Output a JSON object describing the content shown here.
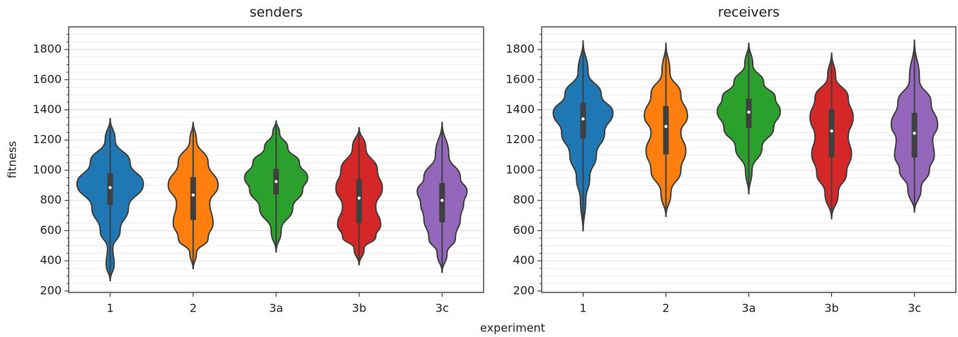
{
  "xlabel": "experiment",
  "chart_data": [
    {
      "type": "violin",
      "title": "senders",
      "ylabel": "fitness",
      "categories": [
        "1",
        "2",
        "3a",
        "3b",
        "3c"
      ],
      "ylim": [
        190,
        1950
      ],
      "yticks": [
        200,
        400,
        600,
        800,
        1000,
        1200,
        1400,
        1600,
        1800
      ],
      "yminor": [
        250,
        300,
        350,
        450,
        500,
        550,
        650,
        700,
        750,
        850,
        900,
        950,
        1050,
        1100,
        1150,
        1250,
        1300,
        1350,
        1450,
        1500,
        1550,
        1650,
        1700,
        1750,
        1850,
        1900
      ],
      "grid": true,
      "violins": [
        {
          "color": "#1f77b4",
          "q1": 770,
          "median": 885,
          "q3": 980,
          "profile_y": [
            265,
            380,
            480,
            600,
            750,
            910,
            1050,
            1200,
            1345
          ],
          "profile_w": [
            0,
            0.12,
            0.08,
            0.3,
            0.55,
            1,
            0.6,
            0.15,
            0
          ]
        },
        {
          "color": "#ff7f0e",
          "q1": 670,
          "median": 835,
          "q3": 955,
          "profile_y": [
            345,
            450,
            550,
            650,
            780,
            900,
            1050,
            1200,
            1320
          ],
          "profile_w": [
            0,
            0.1,
            0.45,
            0.6,
            0.5,
            0.75,
            0.45,
            0.1,
            0
          ]
        },
        {
          "color": "#2ca02c",
          "q1": 840,
          "median": 925,
          "q3": 1010,
          "profile_y": [
            455,
            600,
            750,
            870,
            950,
            1050,
            1150,
            1250,
            1330
          ],
          "profile_w": [
            0,
            0.15,
            0.5,
            0.8,
            0.95,
            0.7,
            0.35,
            0.1,
            0
          ]
        },
        {
          "color": "#d62728",
          "q1": 650,
          "median": 815,
          "q3": 940,
          "profile_y": [
            370,
            480,
            560,
            640,
            760,
            880,
            1000,
            1150,
            1285
          ],
          "profile_w": [
            0,
            0.15,
            0.5,
            0.65,
            0.5,
            0.7,
            0.55,
            0.2,
            0
          ]
        },
        {
          "color": "#9467bd",
          "q1": 655,
          "median": 800,
          "q3": 915,
          "profile_y": [
            320,
            450,
            550,
            680,
            780,
            860,
            950,
            1100,
            1320
          ],
          "profile_w": [
            0,
            0.15,
            0.4,
            0.55,
            0.65,
            0.75,
            0.55,
            0.2,
            0
          ]
        }
      ]
    },
    {
      "type": "violin",
      "title": "receivers",
      "categories": [
        "1",
        "2",
        "3a",
        "3b",
        "3c"
      ],
      "ylim": [
        190,
        1950
      ],
      "yticks": [
        200,
        400,
        600,
        800,
        1000,
        1200,
        1400,
        1600,
        1800
      ],
      "yminor": [
        250,
        300,
        350,
        450,
        500,
        550,
        650,
        700,
        750,
        850,
        900,
        950,
        1050,
        1100,
        1150,
        1250,
        1300,
        1350,
        1450,
        1500,
        1550,
        1650,
        1700,
        1750,
        1850,
        1900
      ],
      "grid": true,
      "violins": [
        {
          "color": "#1f77b4",
          "q1": 1210,
          "median": 1340,
          "q3": 1445,
          "profile_y": [
            595,
            800,
            950,
            1100,
            1250,
            1380,
            1500,
            1650,
            1860
          ],
          "profile_w": [
            0,
            0.08,
            0.2,
            0.4,
            0.65,
            0.9,
            0.55,
            0.15,
            0
          ]
        },
        {
          "color": "#ff7f0e",
          "q1": 1105,
          "median": 1290,
          "q3": 1425,
          "profile_y": [
            690,
            850,
            1000,
            1130,
            1250,
            1360,
            1500,
            1650,
            1845
          ],
          "profile_w": [
            0,
            0.15,
            0.45,
            0.6,
            0.45,
            0.65,
            0.45,
            0.12,
            0
          ]
        },
        {
          "color": "#2ca02c",
          "q1": 1280,
          "median": 1385,
          "q3": 1475,
          "profile_y": [
            840,
            1000,
            1150,
            1280,
            1390,
            1480,
            1580,
            1700,
            1845
          ],
          "profile_w": [
            0,
            0.1,
            0.4,
            0.75,
            0.95,
            0.8,
            0.45,
            0.12,
            0
          ]
        },
        {
          "color": "#d62728",
          "q1": 1085,
          "median": 1260,
          "q3": 1405,
          "profile_y": [
            675,
            850,
            980,
            1110,
            1220,
            1350,
            1480,
            1620,
            1780
          ],
          "profile_w": [
            0,
            0.2,
            0.45,
            0.6,
            0.5,
            0.65,
            0.5,
            0.12,
            0
          ]
        },
        {
          "color": "#9467bd",
          "q1": 1085,
          "median": 1245,
          "q3": 1380,
          "profile_y": [
            720,
            880,
            1000,
            1100,
            1200,
            1300,
            1450,
            1600,
            1865
          ],
          "profile_w": [
            0,
            0.2,
            0.45,
            0.6,
            0.55,
            0.7,
            0.5,
            0.15,
            0
          ]
        }
      ]
    }
  ]
}
